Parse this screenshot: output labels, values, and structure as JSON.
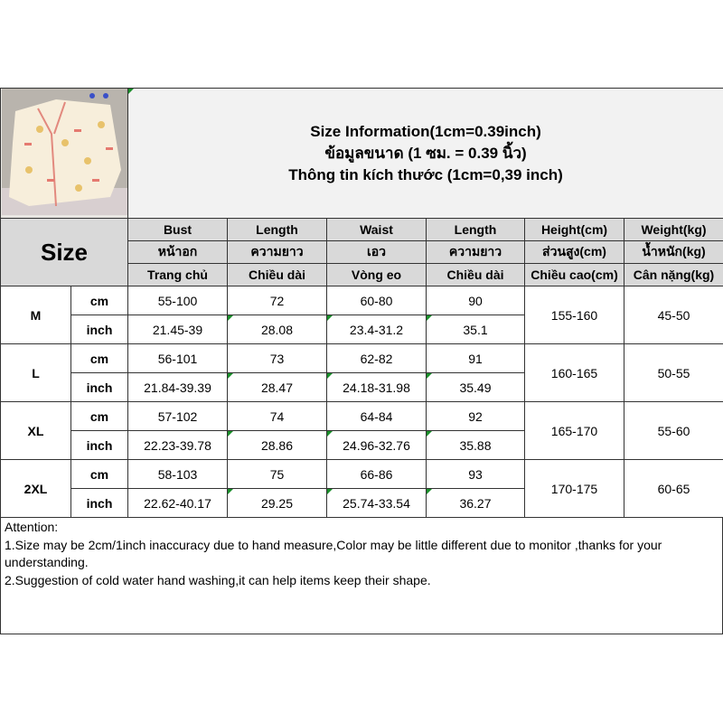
{
  "title_lines": [
    "Size Information(1cm=0.39inch)",
    "ข้อมูลขนาด (1 ซม. = 0.39 นิ้ว)",
    "Thông tin kích thước (1cm=0,39 inch)"
  ],
  "size_label": "Size",
  "headers": [
    [
      "Bust",
      "Length",
      "Waist",
      "Length",
      "Height(cm)",
      "Weight(kg)"
    ],
    [
      "หน้าอก",
      "ความยาว",
      "เอว",
      "ความยาว",
      "ส่วนสูง(cm)",
      "น้ำหนัก(kg)"
    ],
    [
      "Trang chủ",
      "Chiều dài",
      "Vòng eo",
      "Chiều dài",
      "Chiều cao(cm)",
      "Cân nặng(kg)"
    ]
  ],
  "rows": [
    {
      "size": "M",
      "cm": [
        "55-100",
        "72",
        "60-80",
        "90"
      ],
      "inch": [
        "21.45-39",
        "28.08",
        "23.4-31.2",
        "35.1"
      ],
      "height": "155-160",
      "weight": "45-50"
    },
    {
      "size": "L",
      "cm": [
        "56-101",
        "73",
        "62-82",
        "91"
      ],
      "inch": [
        "21.84-39.39",
        "28.47",
        "24.18-31.98",
        "35.49"
      ],
      "height": "160-165",
      "weight": "50-55"
    },
    {
      "size": "XL",
      "cm": [
        "57-102",
        "74",
        "64-84",
        "92"
      ],
      "inch": [
        "22.23-39.78",
        "28.86",
        "24.96-32.76",
        "35.88"
      ],
      "height": "165-170",
      "weight": "55-60"
    },
    {
      "size": "2XL",
      "cm": [
        "58-103",
        "75",
        "66-86",
        "93"
      ],
      "inch": [
        "22.62-40.17",
        "29.25",
        "25.74-33.54",
        "36.27"
      ],
      "height": "170-175",
      "weight": "60-65"
    }
  ],
  "unit_cm": "cm",
  "unit_inch": "inch",
  "attention": [
    "Attention:",
    "1.Size may be 2cm/1inch inaccuracy due to hand measure,Color may be little different due to monitor ,thanks for your understanding.",
    "2.Suggestion of cold water hand washing,it can help items keep their shape."
  ]
}
